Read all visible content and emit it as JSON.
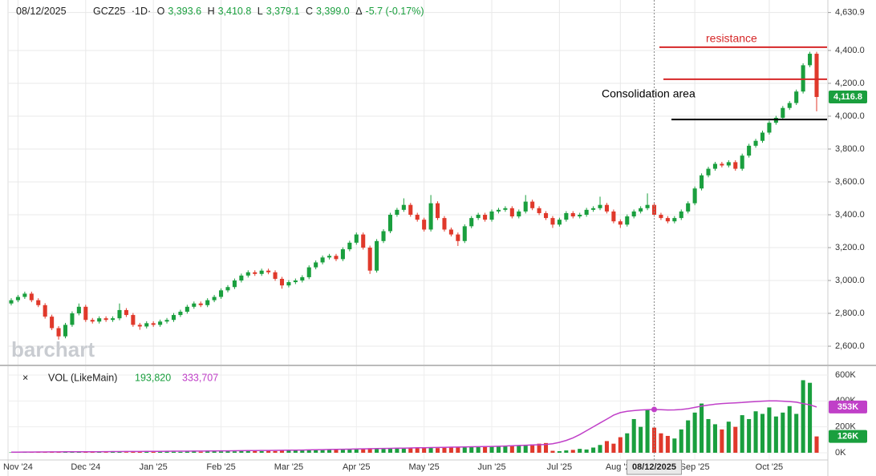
{
  "header": {
    "date": "08/12/2025",
    "symbol": "GCZ25",
    "interval": "·1D·",
    "open_label": "O",
    "open": "3,393.6",
    "high_label": "H",
    "high": "3,410.8",
    "low_label": "L",
    "low": "3,379.1",
    "close_label": "C",
    "close": "3,399.0",
    "change_label": "Δ",
    "change": "-5.7 (-0.17%)"
  },
  "chart_data": {
    "type": "candlestick",
    "watermark": "barchart",
    "categories": [
      null,
      "Nov '24",
      null,
      null,
      null,
      null,
      null,
      null,
      null,
      null,
      null,
      "Dec '24",
      null,
      null,
      null,
      null,
      null,
      null,
      null,
      null,
      null,
      "Jan '25",
      null,
      null,
      null,
      null,
      null,
      null,
      null,
      null,
      null,
      "Feb '25",
      null,
      null,
      null,
      null,
      null,
      null,
      null,
      null,
      null,
      "Mar '25",
      null,
      null,
      null,
      null,
      null,
      null,
      null,
      null,
      null,
      "Apr '25",
      null,
      null,
      null,
      null,
      null,
      null,
      null,
      null,
      null,
      "May '25",
      null,
      null,
      null,
      null,
      null,
      null,
      null,
      null,
      null,
      "Jun '25",
      null,
      null,
      null,
      null,
      null,
      null,
      null,
      null,
      null,
      "Jul '25",
      null,
      null,
      null,
      null,
      null,
      null,
      null,
      null,
      "Aug '25",
      null,
      null,
      null,
      null,
      null,
      null,
      null,
      null,
      null,
      null,
      "Sep '25",
      null,
      null,
      null,
      null,
      null,
      null,
      null,
      null,
      null,
      null,
      "Oct '25",
      null,
      null,
      null,
      null,
      null,
      null,
      null
    ],
    "ohlc": [
      [
        2860,
        2892,
        2848,
        2880
      ],
      [
        2880,
        2912,
        2868,
        2900
      ],
      [
        2900,
        2932,
        2888,
        2920
      ],
      [
        2920,
        2932,
        2868,
        2880
      ],
      [
        2880,
        2892,
        2838,
        2850
      ],
      [
        2850,
        2862,
        2768,
        2780
      ],
      [
        2780,
        2792,
        2698,
        2710
      ],
      [
        2710,
        2722,
        2640,
        2660
      ],
      [
        2660,
        2742,
        2648,
        2730
      ],
      [
        2730,
        2812,
        2718,
        2800
      ],
      [
        2800,
        2860,
        2788,
        2840
      ],
      [
        2840,
        2852,
        2748,
        2760
      ],
      [
        2760,
        2772,
        2738,
        2750
      ],
      [
        2750,
        2782,
        2738,
        2770
      ],
      [
        2770,
        2782,
        2748,
        2760
      ],
      [
        2760,
        2782,
        2748,
        2770
      ],
      [
        2770,
        2860,
        2758,
        2820
      ],
      [
        2820,
        2832,
        2778,
        2790
      ],
      [
        2790,
        2802,
        2718,
        2730
      ],
      [
        2730,
        2742,
        2700,
        2720
      ],
      [
        2720,
        2752,
        2708,
        2740
      ],
      [
        2740,
        2752,
        2718,
        2730
      ],
      [
        2730,
        2762,
        2718,
        2750
      ],
      [
        2750,
        2772,
        2738,
        2760
      ],
      [
        2760,
        2802,
        2748,
        2790
      ],
      [
        2790,
        2822,
        2778,
        2810
      ],
      [
        2810,
        2852,
        2798,
        2840
      ],
      [
        2840,
        2872,
        2828,
        2860
      ],
      [
        2860,
        2872,
        2838,
        2850
      ],
      [
        2850,
        2892,
        2838,
        2880
      ],
      [
        2880,
        2912,
        2868,
        2900
      ],
      [
        2900,
        2952,
        2888,
        2940
      ],
      [
        2940,
        2972,
        2928,
        2960
      ],
      [
        2960,
        3012,
        2948,
        3000
      ],
      [
        3000,
        3042,
        2988,
        3030
      ],
      [
        3030,
        3062,
        3018,
        3050
      ],
      [
        3050,
        3062,
        3028,
        3040
      ],
      [
        3040,
        3072,
        3028,
        3060
      ],
      [
        3060,
        3072,
        3038,
        3050
      ],
      [
        3050,
        3062,
        2998,
        3010
      ],
      [
        3010,
        3022,
        2950,
        2970
      ],
      [
        2970,
        3002,
        2958,
        2990
      ],
      [
        2990,
        3012,
        2978,
        3000
      ],
      [
        3000,
        3032,
        2988,
        3020
      ],
      [
        3020,
        3092,
        3008,
        3080
      ],
      [
        3080,
        3122,
        3068,
        3110
      ],
      [
        3110,
        3152,
        3098,
        3140
      ],
      [
        3140,
        3162,
        3128,
        3150
      ],
      [
        3150,
        3162,
        3118,
        3130
      ],
      [
        3130,
        3202,
        3118,
        3190
      ],
      [
        3190,
        3242,
        3178,
        3230
      ],
      [
        3230,
        3292,
        3218,
        3280
      ],
      [
        3280,
        3292,
        3188,
        3200
      ],
      [
        3200,
        3212,
        3040,
        3060
      ],
      [
        3060,
        3252,
        3048,
        3240
      ],
      [
        3240,
        3312,
        3228,
        3300
      ],
      [
        3300,
        3412,
        3288,
        3400
      ],
      [
        3400,
        3442,
        3388,
        3430
      ],
      [
        3430,
        3500,
        3418,
        3460
      ],
      [
        3460,
        3472,
        3388,
        3400
      ],
      [
        3400,
        3412,
        3358,
        3370
      ],
      [
        3370,
        3382,
        3298,
        3310
      ],
      [
        3310,
        3520,
        3298,
        3470
      ],
      [
        3470,
        3482,
        3368,
        3380
      ],
      [
        3380,
        3392,
        3298,
        3310
      ],
      [
        3310,
        3322,
        3268,
        3280
      ],
      [
        3280,
        3292,
        3210,
        3240
      ],
      [
        3240,
        3342,
        3228,
        3330
      ],
      [
        3330,
        3392,
        3318,
        3380
      ],
      [
        3380,
        3412,
        3368,
        3400
      ],
      [
        3400,
        3412,
        3358,
        3370
      ],
      [
        3370,
        3432,
        3358,
        3420
      ],
      [
        3420,
        3442,
        3408,
        3430
      ],
      [
        3430,
        3452,
        3418,
        3440
      ],
      [
        3440,
        3452,
        3378,
        3390
      ],
      [
        3390,
        3432,
        3378,
        3420
      ],
      [
        3420,
        3520,
        3408,
        3480
      ],
      [
        3480,
        3492,
        3428,
        3440
      ],
      [
        3440,
        3452,
        3398,
        3410
      ],
      [
        3410,
        3422,
        3368,
        3380
      ],
      [
        3380,
        3392,
        3320,
        3340
      ],
      [
        3340,
        3382,
        3328,
        3370
      ],
      [
        3370,
        3422,
        3358,
        3410
      ],
      [
        3410,
        3422,
        3378,
        3390
      ],
      [
        3390,
        3412,
        3378,
        3400
      ],
      [
        3400,
        3442,
        3388,
        3430
      ],
      [
        3430,
        3452,
        3418,
        3440
      ],
      [
        3440,
        3510,
        3428,
        3460
      ],
      [
        3460,
        3472,
        3408,
        3420
      ],
      [
        3420,
        3432,
        3348,
        3360
      ],
      [
        3360,
        3372,
        3320,
        3340
      ],
      [
        3340,
        3402,
        3328,
        3390
      ],
      [
        3390,
        3432,
        3378,
        3420
      ],
      [
        3420,
        3452,
        3408,
        3440
      ],
      [
        3440,
        3530,
        3428,
        3460
      ],
      [
        3460,
        3472,
        3388,
        3400
      ],
      [
        3400,
        3412,
        3368,
        3380
      ],
      [
        3380,
        3392,
        3348,
        3360
      ],
      [
        3360,
        3392,
        3348,
        3380
      ],
      [
        3380,
        3432,
        3368,
        3420
      ],
      [
        3420,
        3482,
        3408,
        3470
      ],
      [
        3470,
        3572,
        3458,
        3560
      ],
      [
        3560,
        3652,
        3548,
        3640
      ],
      [
        3640,
        3692,
        3628,
        3680
      ],
      [
        3680,
        3722,
        3668,
        3710
      ],
      [
        3710,
        3722,
        3688,
        3700
      ],
      [
        3700,
        3732,
        3688,
        3720
      ],
      [
        3720,
        3732,
        3668,
        3680
      ],
      [
        3680,
        3772,
        3668,
        3760
      ],
      [
        3760,
        3832,
        3748,
        3820
      ],
      [
        3820,
        3862,
        3808,
        3850
      ],
      [
        3850,
        3912,
        3838,
        3900
      ],
      [
        3900,
        3972,
        3888,
        3960
      ],
      [
        3960,
        4002,
        3948,
        3990
      ],
      [
        3990,
        4062,
        3978,
        4050
      ],
      [
        4050,
        4092,
        4038,
        4080
      ],
      [
        4080,
        4162,
        4068,
        4150
      ],
      [
        4150,
        4322,
        4138,
        4310
      ],
      [
        4310,
        4392,
        4298,
        4380
      ],
      [
        4380,
        4392,
        4030,
        4116.8
      ]
    ],
    "ylim": [
      2488,
      4707
    ],
    "yticks": [
      {
        "value": 2600,
        "label": "2,600.0"
      },
      {
        "value": 2800,
        "label": "2,800.0"
      },
      {
        "value": 3000,
        "label": "3,000.0"
      },
      {
        "value": 3200,
        "label": "3,200.0"
      },
      {
        "value": 3400,
        "label": "3,400.0"
      },
      {
        "value": 3600,
        "label": "3,600.0"
      },
      {
        "value": 3800,
        "label": "3,800.0"
      },
      {
        "value": 4000,
        "label": "4,000.0"
      },
      {
        "value": 4200,
        "label": "4,200.0"
      },
      {
        "value": 4400,
        "label": "4,400.0"
      },
      {
        "value": 4630.9,
        "label": "4,630.9"
      }
    ],
    "last": {
      "value": 4116.8,
      "label": "4,116.8"
    },
    "up_color": "#1a9f3e",
    "down_color": "#e0392b",
    "grid": true,
    "lines": [
      {
        "value": 4420,
        "color": "#d62728"
      },
      {
        "value": 4225,
        "color": "#d62728"
      },
      {
        "value": 3980,
        "color": "#000000"
      }
    ],
    "annotations": [
      "resistance",
      "Consolidation area"
    ],
    "volume": {
      "title": "VOL (LikeMain)",
      "value_text": "193,820",
      "avg_text": "333,707",
      "avg_color": "#c040c8",
      "values": [
        3000,
        4000,
        3000,
        5000,
        4000,
        6000,
        5000,
        4000,
        7000,
        5000,
        6000,
        5000,
        4000,
        6000,
        5000,
        7000,
        6000,
        5000,
        6000,
        7000,
        8000,
        6000,
        7000,
        9000,
        8000,
        7000,
        9000,
        10000,
        8000,
        9000,
        11000,
        10000,
        12000,
        11000,
        13000,
        12000,
        14000,
        12000,
        15000,
        13000,
        16000,
        18000,
        17000,
        19000,
        20000,
        22000,
        21000,
        23000,
        25000,
        24000,
        26000,
        28000,
        30000,
        35000,
        32000,
        30000,
        33000,
        34000,
        36000,
        35000,
        37000,
        40000,
        38000,
        36000,
        39000,
        41000,
        42000,
        40000,
        44000,
        45000,
        46000,
        48000,
        50000,
        52000,
        55000,
        58000,
        60000,
        65000,
        70000,
        75000,
        15000,
        12000,
        18000,
        22000,
        30000,
        25000,
        40000,
        60000,
        90000,
        70000,
        120000,
        150000,
        260000,
        200000,
        330000,
        193820,
        150000,
        130000,
        110000,
        180000,
        250000,
        310000,
        380000,
        260000,
        220000,
        180000,
        240000,
        200000,
        290000,
        260000,
        320000,
        300000,
        350000,
        280000,
        310000,
        360000,
        300000,
        560000,
        540000,
        126000
      ],
      "avg": [
        5000,
        5000,
        5500,
        5500,
        6000,
        6000,
        6500,
        6500,
        7000,
        7000,
        7500,
        7500,
        8000,
        8000,
        8500,
        9000,
        9000,
        9500,
        10000,
        10000,
        10500,
        11000,
        11000,
        11500,
        12000,
        12000,
        12500,
        13000,
        13000,
        13500,
        14000,
        14500,
        15000,
        15500,
        16000,
        16500,
        17000,
        17500,
        18000,
        18500,
        19000,
        19500,
        20000,
        21000,
        22000,
        23000,
        24000,
        25000,
        26000,
        27000,
        28000,
        29000,
        30000,
        31000,
        32000,
        33000,
        34000,
        35000,
        36000,
        37000,
        38000,
        39000,
        40000,
        41000,
        42000,
        43000,
        44000,
        45000,
        46000,
        47000,
        48000,
        49000,
        50000,
        52000,
        54000,
        56000,
        58000,
        60000,
        62000,
        64000,
        70000,
        80000,
        95000,
        115000,
        140000,
        170000,
        200000,
        230000,
        260000,
        290000,
        310000,
        320000,
        325000,
        330000,
        332000,
        333707,
        332000,
        330000,
        331000,
        334000,
        340000,
        350000,
        360000,
        368000,
        375000,
        380000,
        383000,
        385000,
        388000,
        392000,
        395000,
        398000,
        400000,
        400000,
        398000,
        395000,
        390000,
        380000,
        370000,
        353000
      ],
      "ylim": [
        -62000,
        668000
      ],
      "yticks": [
        {
          "value": 0,
          "label": "0K"
        },
        {
          "value": 200000,
          "label": "200K"
        },
        {
          "value": 400000,
          "label": "400K"
        },
        {
          "value": 600000,
          "label": "600K"
        }
      ],
      "last_label": {
        "value": 126000,
        "label": "126K"
      },
      "avg_label": {
        "value": 353000,
        "label": "353K"
      }
    }
  }
}
